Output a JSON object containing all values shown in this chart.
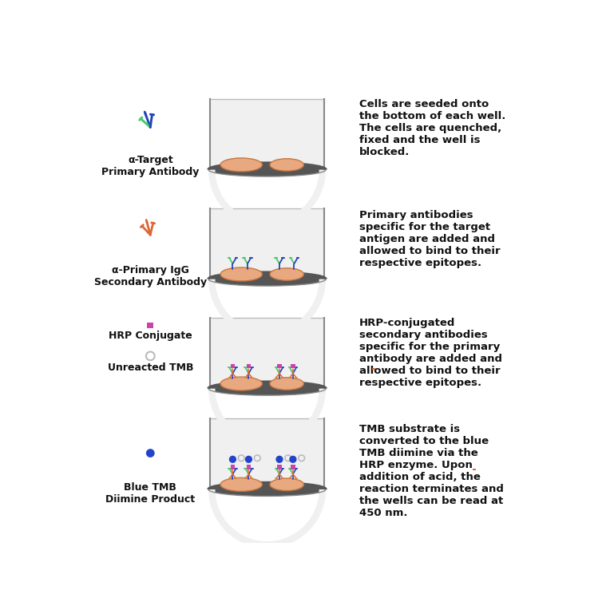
{
  "background_color": "#ffffff",
  "rows": [
    {
      "icon_label": "α-Target\nPrimary Antibody",
      "icon_type": "antibody_green_blue",
      "well_contents": "cells_only",
      "description": "Cells are seeded onto\nthe bottom of each well.\nThe cells are quenched,\nfixed and the well is\nblocked."
    },
    {
      "icon_label": "α-Primary IgG\nSecondary Antibody",
      "icon_type": "antibody_orange",
      "well_contents": "cells_with_primary",
      "description": "Primary antibodies\nspecific for the target\nantigen are added and\nallowed to bind to their\nrespective epitopes."
    },
    {
      "icon_label": "HRP Conjugate",
      "icon_type": "hrp_conjugate",
      "icon_label2": "Unreacted TMB",
      "icon_type2": "tmb_circle",
      "well_contents": "cells_with_secondary",
      "description": "HRP-conjugated\nsecondary antibodies\nspecific for the primary\nantibody are added and\nallowed to bind to their\nrespective epitopes."
    },
    {
      "icon_label": "Blue TMB\nDiimine Product",
      "icon_type": "blue_tmb",
      "well_contents": "cells_with_product",
      "description": "TMB substrate is\nconverted to the blue\nTMB diimine via the\nHRP enzyme. Upon\naddition of acid, the\nreaction terminates and\nthe wells can be read at\n450 nm."
    }
  ],
  "well_fill": "#f0f0f0",
  "well_border_color": "#888888",
  "well_bottom_color": "#555555",
  "cell_color": "#e8a880",
  "cell_edge_color": "#c87840",
  "green_color": "#44cc66",
  "blue_color": "#2244bb",
  "orange_color": "#dd6633",
  "orange2_color": "#cc8844",
  "purple_color": "#cc44aa",
  "blue_tmb_color": "#2244cc",
  "tmb_circle_color": "#bbbbbb",
  "text_color": "#111111",
  "label_fontsize": 9.0,
  "desc_fontsize": 9.5
}
